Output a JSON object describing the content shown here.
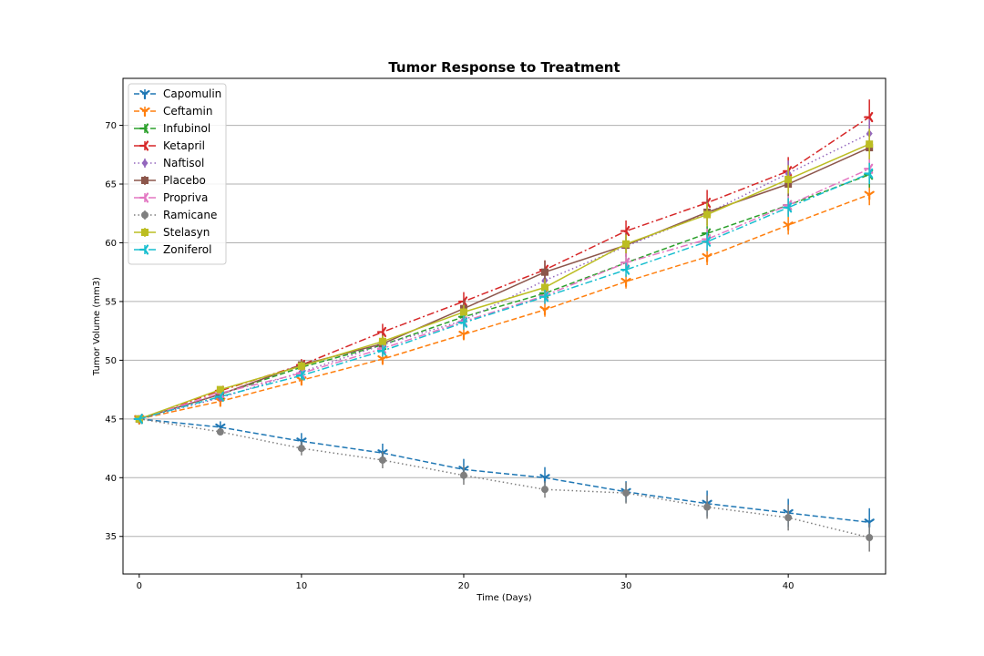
{
  "chart_data": {
    "type": "line",
    "title": "Tumor Response to Treatment",
    "xlabel": "Time (Days)",
    "ylabel": "Tumor Volume (mm3)",
    "xlim": [
      -1,
      46
    ],
    "ylim": [
      31.8,
      74
    ],
    "xticks": [
      0,
      10,
      20,
      30,
      40
    ],
    "yticks": [
      35,
      40,
      45,
      50,
      55,
      60,
      65,
      70
    ],
    "grid": "horizontal",
    "legend": "upper-left",
    "x": [
      0,
      5,
      10,
      15,
      20,
      25,
      30,
      35,
      40,
      45
    ],
    "series": [
      {
        "name": "Capomulin",
        "color": "#1f77b4",
        "dash": "6,3",
        "marker": "tri-down",
        "values": [
          45.0,
          44.3,
          43.1,
          42.1,
          40.7,
          40.0,
          38.8,
          37.8,
          37.0,
          36.2
        ],
        "errors": [
          0.0,
          0.5,
          0.7,
          0.8,
          0.9,
          0.9,
          0.9,
          1.1,
          1.2,
          1.2
        ]
      },
      {
        "name": "Ceftamin",
        "color": "#ff7f0e",
        "dash": "6,3",
        "marker": "tri-down",
        "values": [
          45.0,
          46.5,
          48.3,
          50.1,
          52.2,
          54.3,
          56.7,
          58.8,
          61.5,
          64.1
        ],
        "errors": [
          0.0,
          0.2,
          0.4,
          0.5,
          0.5,
          0.6,
          0.6,
          0.7,
          0.8,
          0.9
        ]
      },
      {
        "name": "Infubinol",
        "color": "#2ca02c",
        "dash": "6,3",
        "marker": "tri-right",
        "values": [
          45.0,
          47.1,
          49.4,
          51.3,
          53.7,
          55.7,
          58.3,
          60.8,
          63.2,
          65.8
        ],
        "errors": [
          0.0,
          0.2,
          0.4,
          0.6,
          0.6,
          0.7,
          0.7,
          0.8,
          0.9,
          1.1
        ]
      },
      {
        "name": "Ketapril",
        "color": "#d62728",
        "dash": "8,3,2,3",
        "marker": "tri-right",
        "values": [
          45.0,
          47.4,
          49.6,
          52.4,
          55.0,
          57.7,
          61.0,
          63.4,
          66.1,
          70.7
        ],
        "errors": [
          0.0,
          0.3,
          0.5,
          0.7,
          0.8,
          0.8,
          0.9,
          1.1,
          1.2,
          1.5
        ]
      },
      {
        "name": "Naftisol",
        "color": "#9467bd",
        "dash": "1.5,3",
        "marker": "diamond",
        "values": [
          45.0,
          46.8,
          49.0,
          51.3,
          53.4,
          56.8,
          59.7,
          62.5,
          65.9,
          69.3
        ],
        "errors": [
          0.0,
          0.2,
          0.4,
          0.6,
          0.6,
          0.6,
          0.8,
          0.9,
          1.1,
          1.2
        ]
      },
      {
        "name": "Placebo",
        "color": "#8c564b",
        "dash": "",
        "marker": "square",
        "values": [
          45.0,
          47.1,
          49.6,
          51.4,
          54.4,
          57.5,
          59.8,
          62.6,
          65.0,
          68.1
        ],
        "errors": [
          0.0,
          0.2,
          0.4,
          0.8,
          0.8,
          1.0,
          1.0,
          1.1,
          1.1,
          1.1
        ]
      },
      {
        "name": "Propriva",
        "color": "#e377c2",
        "dash": "8,3,2,3",
        "marker": "tri-right",
        "values": [
          45.0,
          47.2,
          48.9,
          51.0,
          53.3,
          55.5,
          58.3,
          60.3,
          63.2,
          66.3
        ],
        "errors": [
          0.0,
          0.2,
          0.4,
          0.5,
          0.6,
          0.7,
          0.8,
          0.9,
          0.8,
          1.0
        ]
      },
      {
        "name": "Ramicane",
        "color": "#7f7f7f",
        "dash": "1.5,3",
        "marker": "circle",
        "values": [
          45.0,
          43.9,
          42.5,
          41.5,
          40.2,
          39.0,
          38.7,
          37.5,
          36.6,
          34.9
        ],
        "errors": [
          0.0,
          0.3,
          0.6,
          0.7,
          0.8,
          0.7,
          0.9,
          1.0,
          1.1,
          1.2
        ]
      },
      {
        "name": "Stelasyn",
        "color": "#bcbd22",
        "dash": "",
        "marker": "square",
        "values": [
          45.0,
          47.5,
          49.5,
          51.6,
          54.1,
          56.2,
          59.9,
          62.4,
          65.4,
          68.4
        ],
        "errors": [
          0.0,
          0.2,
          0.4,
          0.5,
          0.6,
          0.7,
          0.8,
          1.0,
          1.2,
          1.3
        ]
      },
      {
        "name": "Zoniferol",
        "color": "#17becf",
        "dash": "8,3,2,3",
        "marker": "tri-right",
        "values": [
          45.0,
          46.9,
          48.7,
          50.8,
          53.2,
          55.4,
          57.7,
          60.1,
          63.0,
          65.9
        ],
        "errors": [
          0.0,
          0.2,
          0.4,
          0.5,
          0.6,
          0.6,
          0.6,
          0.8,
          0.8,
          0.9
        ]
      }
    ]
  }
}
